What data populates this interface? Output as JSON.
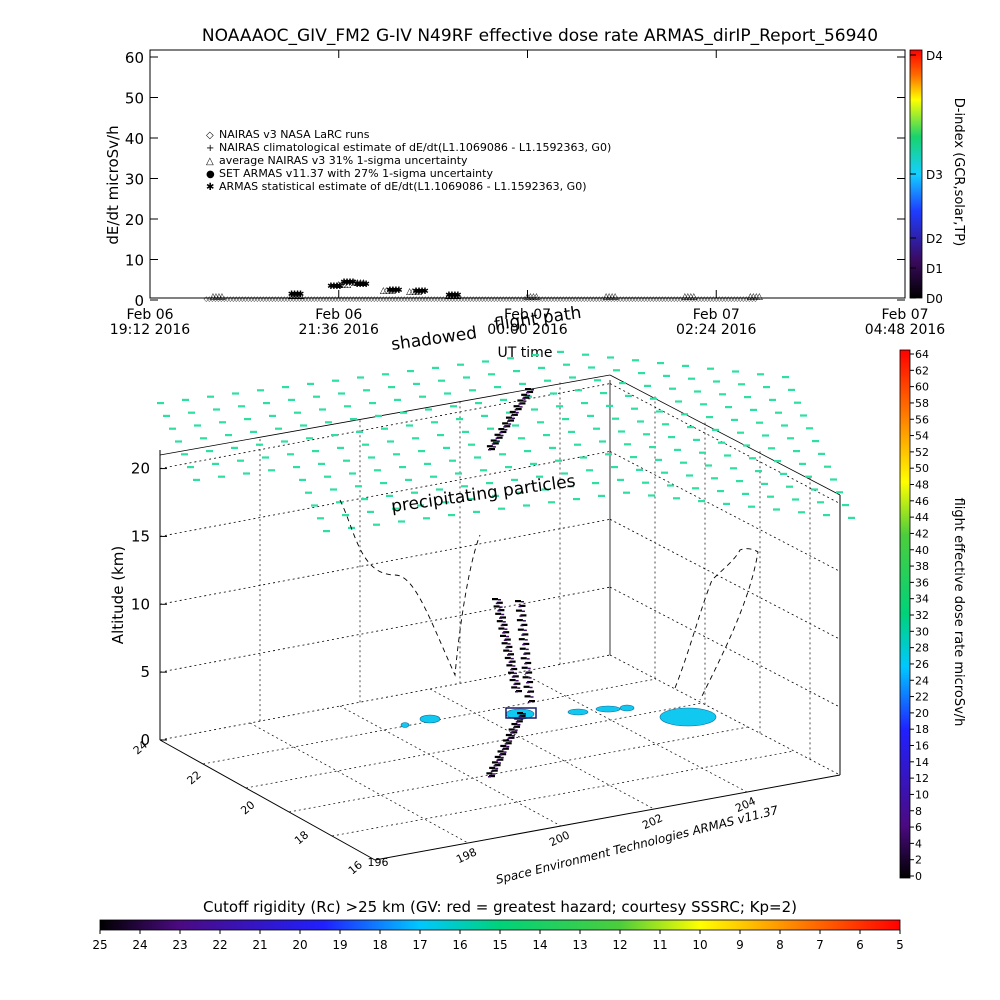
{
  "title": "NOAAAOC_GIV_FM2 G-IV    N49RF  effective dose rate ARMAS_dirIP_Report_56940",
  "top_panel": {
    "ylabel": "dE/dt microSv/h",
    "xlabel": "UT time",
    "yticks": [
      "0",
      "10",
      "20",
      "30",
      "40",
      "50",
      "60"
    ],
    "xticks": [
      {
        "l1": "Feb 06",
        "l2": "19:12 2016"
      },
      {
        "l1": "Feb 06",
        "l2": "21:36 2016"
      },
      {
        "l1": "Feb 07",
        "l2": "00:00 2016"
      },
      {
        "l1": "Feb 07",
        "l2": "02:24 2016"
      },
      {
        "l1": "Feb 07",
        "l2": "04:48 2016"
      }
    ],
    "legend": [
      {
        "sym": "◇",
        "text": "NAIRAS v3 NASA LaRC runs"
      },
      {
        "sym": "+",
        "text": "NAIRAS climatological estimate of dE/dt(L1.1069086 - L1.1592363, G0)"
      },
      {
        "sym": "△",
        "text": "average NAIRAS v3 31% 1-sigma uncertainty"
      },
      {
        "sym": "●",
        "text": "SET ARMAS v11.37 with 27% 1-sigma uncertainty",
        "color": "#1e3cff"
      },
      {
        "sym": "✱",
        "text": "ARMAS statistical estimate of dE/dt(L1.1069086 - L1.1592363, G0)"
      }
    ],
    "dindex_label": "D-index (GCR,solar,TP)",
    "dindex_ticks": [
      "D0",
      "D1",
      "D2",
      "D3",
      "D4"
    ]
  },
  "bottom_panel": {
    "zlabel": "Altitude (km)",
    "zticks": [
      "0",
      "5",
      "10",
      "15",
      "20"
    ],
    "lat_ticks": [
      "16",
      "18",
      "20",
      "22",
      "24"
    ],
    "lon_ticks": [
      "198",
      "200",
      "202",
      "204"
    ],
    "lon_tick_prefix": "196",
    "annotations": {
      "precip": "precipitating particles",
      "shadowed": "shadowed",
      "flightpath": "flight path",
      "credit": "Space Environment Technologies ARMAS v11.37"
    },
    "colorbar_label": "flight effective dose rate microSv/h",
    "colorbar_ticks": [
      "0",
      "2",
      "4",
      "6",
      "8",
      "10",
      "12",
      "14",
      "16",
      "18",
      "20",
      "22",
      "24",
      "26",
      "28",
      "30",
      "32",
      "34",
      "36",
      "38",
      "40",
      "42",
      "44",
      "46",
      "48",
      "50",
      "52",
      "54",
      "56",
      "58",
      "60",
      "62",
      "64"
    ]
  },
  "cutoff": {
    "label": "Cutoff rigidity (Rc) >25 km (GV: red = greatest hazard; courtesy SSSRC; Kp=2)",
    "ticks": [
      "25",
      "24",
      "23",
      "22",
      "21",
      "20",
      "19",
      "18",
      "17",
      "16",
      "15",
      "14",
      "13",
      "12",
      "11",
      "10",
      "9",
      "8",
      "7",
      "6",
      "5"
    ]
  },
  "colors": {
    "grid_marker": "#2ee0a0",
    "land": "#10c8f0",
    "flight_track": "#000000",
    "dindex_scale": [
      "#000000",
      "#3a0a5e",
      "#1e3cff",
      "#19d26e",
      "#ffff00",
      "#ff6a00",
      "#ff0000"
    ],
    "rainbow": [
      "#000000",
      "#4b0a82",
      "#2020ff",
      "#00c8ff",
      "#00d27a",
      "#4ccd3c",
      "#ffff00",
      "#ff7800",
      "#ff0000"
    ]
  },
  "chart_data": [
    {
      "type": "scatter",
      "title": "NOAAAOC_GIV_FM2 G-IV    N49RF  effective dose rate ARMAS_dirIP_Report_56940",
      "xlabel": "UT time",
      "ylabel": "dE/dt microSv/h",
      "ylim": [
        0,
        60
      ],
      "x_range": [
        "Feb 06 19:12 2016",
        "Feb 07 04:48 2016"
      ],
      "series": [
        {
          "name": "NAIRAS v3 NASA LaRC runs",
          "x": [
            "Feb 06 20:00",
            "Feb 06 21:00",
            "Feb 06 21:36",
            "Feb 06 21:48",
            "Feb 06 22:10",
            "Feb 06 22:30",
            "Feb 06 23:00",
            "Feb 07 00:00",
            "Feb 07 01:00",
            "Feb 07 02:00",
            "Feb 07 02:50"
          ],
          "y": [
            0,
            0.3,
            3,
            3.5,
            1.5,
            1.2,
            0.2,
            0,
            0,
            0,
            0
          ]
        },
        {
          "name": "ARMAS statistical estimate of dE/dt(L1.1069086 - L1.1592363, G0)",
          "x": [
            "Feb 06 21:00",
            "Feb 06 21:30",
            "Feb 06 21:40",
            "Feb 06 21:50",
            "Feb 06 22:15",
            "Feb 06 22:35",
            "Feb 06 23:00"
          ],
          "y": [
            0.5,
            2.5,
            3.5,
            3,
            1.5,
            1.2,
            0.3
          ]
        }
      ],
      "legend_position": "upper-left"
    },
    {
      "type": "scatter",
      "zlabel": "Altitude (km)",
      "zlim": [
        0,
        22
      ],
      "flight_track_altitude_km": [
        0,
        2,
        4,
        6,
        8,
        9.5,
        9.5,
        6,
        3,
        1,
        0
      ]
    }
  ]
}
